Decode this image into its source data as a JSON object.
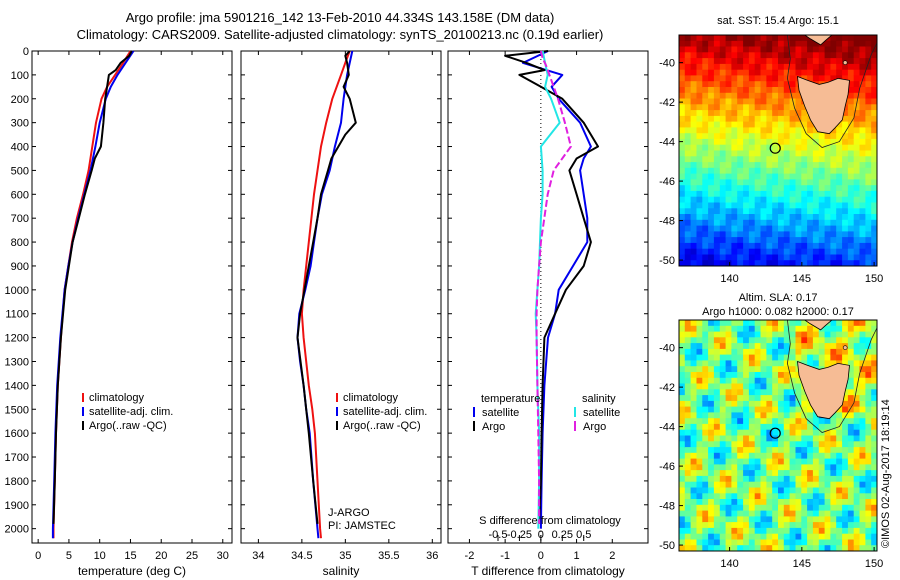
{
  "titles": {
    "line1": "Argo profile: jma 5901216_142 13-Feb-2010 44.334S 143.158E (DM data)",
    "line2": "Climatology: CARS2009. Satellite-adjusted climatology: synTS_20100213.nc (0.19d earlier)"
  },
  "credit": "©IMOS 02-Aug-2017 18:19:14",
  "colors": {
    "climatology": "#ee1111",
    "satellite": "#0000ee",
    "argo": "#000000",
    "salinity_satellite": "#22e6e6",
    "salinity_argo": "#e020e0"
  },
  "chart_data": [
    {
      "type": "line",
      "id": "temperature",
      "xlabel": "temperature (deg C)",
      "ylabel": "",
      "xlim": [
        -1,
        31.5
      ],
      "ylim": [
        2060,
        0
      ],
      "xticks": [
        0,
        5,
        10,
        15,
        20,
        25,
        30
      ],
      "yticks": [
        0,
        100,
        200,
        300,
        400,
        500,
        600,
        700,
        800,
        900,
        1000,
        1100,
        1200,
        1300,
        1400,
        1500,
        1600,
        1700,
        1800,
        1900,
        2000
      ],
      "legend": [
        "climatology",
        "satellite-adj. clim.",
        "Argo(..raw -QC)"
      ],
      "legend_position": "lower-right",
      "series": [
        {
          "name": "climatology",
          "color_key": "climatology",
          "depth": [
            0,
            50,
            100,
            150,
            200,
            300,
            400,
            500,
            600,
            700,
            800,
            900,
            1000,
            1200,
            1400,
            1600,
            1800,
            2000,
            2040
          ],
          "values": [
            15.0,
            13.8,
            12.5,
            11.2,
            10.3,
            9.4,
            8.8,
            8.2,
            7.3,
            6.3,
            5.5,
            4.9,
            4.3,
            3.7,
            3.2,
            2.9,
            2.7,
            2.5,
            2.5
          ]
        },
        {
          "name": "satellite-adj. clim.",
          "color_key": "satellite",
          "depth": [
            0,
            50,
            100,
            150,
            200,
            300,
            400,
            500,
            600,
            700,
            800,
            900,
            1000,
            1200,
            1400,
            1600,
            1800,
            2000,
            2040
          ],
          "values": [
            15.5,
            14.2,
            12.9,
            11.8,
            11.0,
            10.0,
            9.3,
            8.5,
            7.5,
            6.5,
            5.6,
            4.9,
            4.3,
            3.6,
            3.1,
            2.8,
            2.6,
            2.4,
            2.4
          ]
        },
        {
          "name": "Argo(..raw -QC)",
          "color_key": "argo",
          "depth": [
            0,
            20,
            50,
            80,
            100,
            150,
            200,
            300,
            400,
            450,
            500,
            600,
            700,
            800,
            900,
            1000,
            1200,
            1400,
            1600,
            1800,
            1980
          ],
          "values": [
            15.2,
            14.8,
            13.4,
            12.6,
            11.5,
            11.2,
            10.9,
            10.6,
            10.2,
            9.2,
            8.7,
            7.6,
            6.6,
            5.6,
            5.0,
            4.4,
            3.7,
            3.2,
            2.9,
            2.7,
            2.5
          ]
        }
      ]
    },
    {
      "type": "line",
      "id": "salinity",
      "xlabel": "salinity",
      "ylabel": "",
      "xlim": [
        33.8,
        36.1
      ],
      "ylim": [
        2060,
        0
      ],
      "xticks": [
        34,
        34.5,
        35,
        35.5,
        36
      ],
      "legend": [
        "climatology",
        "satellite-adj. clim.",
        "Argo(..raw -QC)"
      ],
      "legend_position": "lower-right",
      "annotations": [
        "J-ARGO",
        "PI: JAMSTEC"
      ],
      "series": [
        {
          "name": "climatology",
          "color_key": "climatology",
          "depth": [
            0,
            50,
            100,
            200,
            300,
            400,
            500,
            600,
            700,
            800,
            900,
            1000,
            1100,
            1200,
            1300,
            1400,
            1500,
            1600,
            1800,
            2000,
            2040
          ],
          "values": [
            35.05,
            35.0,
            34.95,
            34.85,
            34.78,
            34.72,
            34.68,
            34.64,
            34.61,
            34.58,
            34.55,
            34.52,
            34.5,
            34.52,
            34.55,
            34.58,
            34.62,
            34.65,
            34.68,
            34.71,
            34.72
          ]
        },
        {
          "name": "satellite-adj. clim.",
          "color_key": "satellite",
          "depth": [
            0,
            50,
            100,
            200,
            300,
            400,
            500,
            600,
            700,
            800,
            900,
            1000,
            1100,
            1200,
            1300,
            1400,
            1500,
            1600,
            1800,
            2000,
            2040
          ],
          "values": [
            35.08,
            35.05,
            35.02,
            34.98,
            34.95,
            34.88,
            34.82,
            34.73,
            34.68,
            34.64,
            34.6,
            34.54,
            34.47,
            34.45,
            34.48,
            34.52,
            34.55,
            34.59,
            34.63,
            34.68,
            34.69
          ]
        },
        {
          "name": "Argo(..raw -QC)",
          "color_key": "argo",
          "depth": [
            0,
            20,
            50,
            100,
            150,
            200,
            300,
            350,
            400,
            450,
            500,
            600,
            700,
            800,
            900,
            1000,
            1100,
            1200,
            1400,
            1600,
            1800,
            1980
          ],
          "values": [
            35.05,
            35.0,
            35.02,
            35.04,
            34.98,
            35.05,
            35.12,
            35.0,
            34.92,
            34.84,
            34.8,
            34.72,
            34.68,
            34.63,
            34.58,
            34.53,
            34.48,
            34.45,
            34.52,
            34.58,
            34.63,
            34.68
          ]
        }
      ]
    },
    {
      "type": "line",
      "id": "difference",
      "xlabel": "T difference from climatology",
      "x2label": "S difference from climatology",
      "xlim": [
        -2.6,
        3.0
      ],
      "ylim": [
        2060,
        0
      ],
      "xticks": [
        -2,
        -1,
        0,
        1,
        2
      ],
      "x2ticks": [
        -0.5,
        -0.25,
        0,
        0.25,
        0.5
      ],
      "x2tick_labels": [
        "-0.5",
        "-0.25",
        "0",
        "0.25",
        "0.5"
      ],
      "legend_headers": [
        "temperature",
        "salinity"
      ],
      "legend": [
        "satellite",
        "Argo",
        "satellite",
        "Argo"
      ],
      "series": [
        {
          "name": "satellite",
          "group": "temperature",
          "color_key": "satellite",
          "depth": [
            0,
            50,
            100,
            150,
            200,
            300,
            400,
            450,
            500,
            600,
            700,
            800,
            900,
            1000,
            1100,
            1200,
            1400,
            1600,
            1800,
            2000
          ],
          "values": [
            0.2,
            -0.5,
            0.6,
            0.3,
            0.5,
            1.1,
            1.4,
            1.2,
            1.1,
            1.2,
            1.3,
            1.3,
            0.9,
            0.5,
            0.4,
            0.2,
            0.1,
            0.05,
            0.02,
            0.0
          ]
        },
        {
          "name": "Argo",
          "group": "temperature",
          "color_key": "argo",
          "depth": [
            0,
            20,
            50,
            80,
            100,
            150,
            200,
            300,
            400,
            450,
            500,
            600,
            700,
            800,
            900,
            1000,
            1100,
            1200,
            1400,
            1600,
            1800,
            1980
          ],
          "values": [
            0.2,
            -1.0,
            -0.4,
            0.1,
            -0.6,
            0.0,
            0.6,
            1.2,
            1.6,
            1.0,
            0.8,
            1.0,
            1.2,
            1.4,
            1.2,
            0.7,
            0.4,
            0.1,
            0.05,
            0.02,
            0.0,
            -0.05
          ]
        },
        {
          "name": "satellite",
          "group": "salinity",
          "color_key": "salinity_satellite",
          "depth": [
            0,
            50,
            100,
            150,
            200,
            300,
            400,
            500,
            600,
            700,
            800,
            900,
            1000,
            1100,
            1200,
            1400,
            1600,
            1800,
            2000
          ],
          "values": [
            0.02,
            0.05,
            0.08,
            0.05,
            0.12,
            0.22,
            0.0,
            0.02,
            0.02,
            0.0,
            -0.01,
            -0.02,
            -0.04,
            -0.06,
            -0.05,
            -0.04,
            -0.02,
            -0.02,
            -0.03
          ]
        },
        {
          "name": "Argo",
          "group": "salinity",
          "color_key": "salinity_argo",
          "depth": [
            0,
            30,
            60,
            100,
            150,
            200,
            300,
            400,
            500,
            600,
            700,
            800,
            900,
            1000,
            1100,
            1200,
            1400,
            1600,
            1800,
            1980
          ],
          "values": [
            0.0,
            0.02,
            0.06,
            0.1,
            0.15,
            0.2,
            0.28,
            0.35,
            0.15,
            0.08,
            0.04,
            0.0,
            -0.02,
            -0.04,
            -0.05,
            -0.05,
            -0.04,
            -0.03,
            -0.02,
            -0.02
          ]
        }
      ]
    },
    {
      "type": "heatmap",
      "id": "sst-map",
      "title": "sat. SST: 15.4  Argo: 15.1",
      "xlim": [
        136.5,
        150.2
      ],
      "ylim": [
        -50.3,
        -38.6
      ],
      "xticks": [
        140,
        145,
        150
      ],
      "yticks": [
        -40,
        -42,
        -44,
        -46,
        -48,
        -50
      ],
      "marker": {
        "lon": 143.158,
        "lat": -44.334
      }
    },
    {
      "type": "heatmap",
      "id": "sla-map",
      "title": "Altim. SLA: 0.17",
      "subtitle": "Argo h1000: 0.082 h2000: 0.17",
      "xlim": [
        136.5,
        150.2
      ],
      "ylim": [
        -50.3,
        -38.6
      ],
      "xticks": [
        140,
        145,
        150
      ],
      "yticks": [
        -40,
        -42,
        -44,
        -46,
        -48,
        -50
      ],
      "marker": {
        "lon": 143.158,
        "lat": -44.334
      }
    }
  ]
}
